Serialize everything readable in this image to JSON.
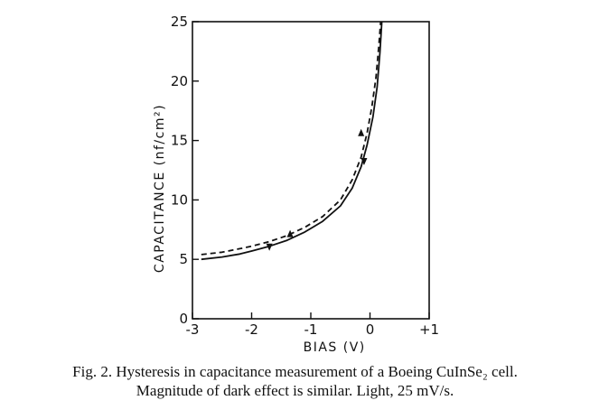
{
  "chart_data": {
    "type": "line",
    "xlabel": "BIAS (V)",
    "ylabel": "CAPACITANCE (nf/cm²)",
    "xlim": [
      -3,
      1
    ],
    "ylim": [
      0,
      25
    ],
    "xticks": [
      -3,
      -2,
      -1,
      0,
      1
    ],
    "xtick_labels": [
      "-3",
      "-2",
      "-1",
      "0",
      "+1"
    ],
    "yticks": [
      0,
      5,
      10,
      15,
      20,
      25
    ],
    "ytick_labels": [
      "0",
      "5",
      "10",
      "15",
      "20",
      "25"
    ],
    "grid": false,
    "legend": "none",
    "series": [
      {
        "style": "solid",
        "x": [
          -2.85,
          -2.5,
          -2.2,
          -2.0,
          -1.7,
          -1.4,
          -1.1,
          -0.8,
          -0.5,
          -0.3,
          -0.15,
          -0.05,
          0.05,
          0.12,
          0.17,
          0.2
        ],
        "y": [
          5.0,
          5.2,
          5.45,
          5.7,
          6.1,
          6.6,
          7.3,
          8.2,
          9.5,
          11.0,
          12.8,
          14.6,
          17.0,
          19.5,
          22.5,
          25.0
        ],
        "arrows": [
          {
            "x": -1.7,
            "y": 6.1,
            "direction": "down"
          },
          {
            "x": -0.1,
            "y": 13.3,
            "direction": "down"
          }
        ]
      },
      {
        "style": "dashed",
        "x": [
          -2.85,
          -2.5,
          -2.2,
          -2.0,
          -1.7,
          -1.4,
          -1.1,
          -0.8,
          -0.5,
          -0.3,
          -0.15,
          -0.05,
          0.03,
          0.1,
          0.15,
          0.18
        ],
        "y": [
          5.4,
          5.6,
          5.9,
          6.1,
          6.5,
          7.0,
          7.7,
          8.6,
          10.0,
          11.7,
          13.6,
          15.6,
          17.8,
          20.3,
          23.0,
          25.0
        ],
        "arrows": [
          {
            "x": -1.35,
            "y": 7.1,
            "direction": "up"
          },
          {
            "x": -0.15,
            "y": 15.6,
            "direction": "up"
          }
        ]
      }
    ]
  },
  "caption": {
    "line1": "Fig. 2.   Hysteresis in capacitance measurement of a Boeing CuInSe₂ cell.",
    "line2": "Magnitude of dark effect is similar. Light, 25 mV/s."
  }
}
